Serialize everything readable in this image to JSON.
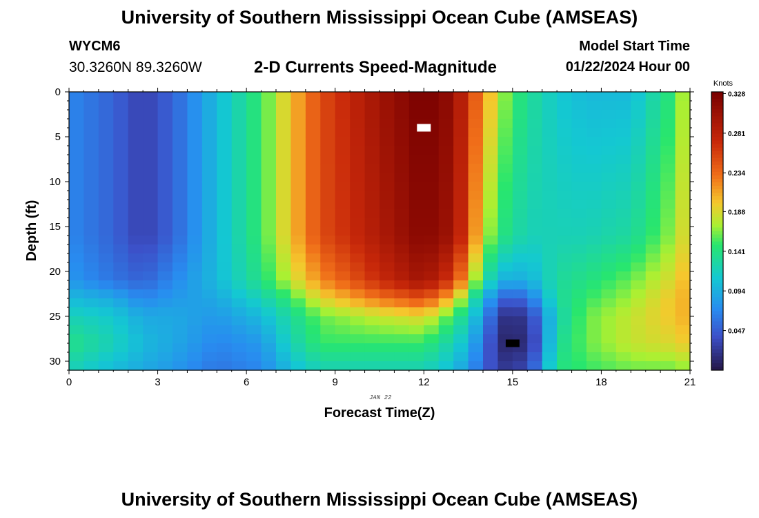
{
  "header": {
    "title": "University of Southern Mississippi Ocean Cube (AMSEAS)",
    "station_id": "WYCM6",
    "coords": "30.3260N  89.3260W",
    "plot_title": "2-D Currents Speed-Magnitude",
    "start_label": "Model Start Time",
    "start_value": "01/22/2024 Hour 00"
  },
  "footer": {
    "title": "University of Southern Mississippi Ocean Cube (AMSEAS)"
  },
  "chart_data": {
    "type": "heatmap",
    "title": "2-D Currents Speed-Magnitude",
    "xlabel": "Forecast Time(Z)",
    "ylabel": "Depth (ft)",
    "date_annotation": "JAN 22",
    "xlim": [
      0,
      21
    ],
    "ylim": [
      0,
      31
    ],
    "x_ticks": [
      0,
      3,
      6,
      9,
      12,
      15,
      18,
      21
    ],
    "y_ticks": [
      0,
      5,
      10,
      15,
      20,
      25,
      30
    ],
    "colorbar": {
      "label": "Knots",
      "ticks": [
        "0.047",
        "0.094",
        "0.141",
        "0.188",
        "0.234",
        "0.281",
        "0.328"
      ],
      "range": [
        0.0,
        0.33
      ]
    },
    "max_marker": {
      "hour": 12.0,
      "depth_ft": 4.0,
      "color": "#ffffff"
    },
    "min_marker": {
      "hour": 15.0,
      "depth_ft": 28.0,
      "color": "#000000"
    },
    "model_profiles": {
      "hours": [
        0,
        1.5,
        2.5,
        3.5,
        5,
        6.5,
        7.5,
        8.5,
        10.5,
        12,
        13,
        13.5,
        14,
        14.5,
        15,
        15.7,
        16.5,
        17.5,
        19,
        20.5,
        21
      ],
      "depths": [
        0,
        16,
        21,
        23,
        25,
        28,
        31
      ],
      "knots": [
        [
          0.07,
          0.07,
          0.08,
          0.1,
          0.12,
          0.14,
          0.12
        ],
        [
          0.05,
          0.05,
          0.06,
          0.09,
          0.11,
          0.12,
          0.1
        ],
        [
          0.03,
          0.03,
          0.05,
          0.07,
          0.09,
          0.1,
          0.09
        ],
        [
          0.05,
          0.05,
          0.07,
          0.08,
          0.09,
          0.09,
          0.08
        ],
        [
          0.1,
          0.1,
          0.1,
          0.09,
          0.08,
          0.07,
          0.06
        ],
        [
          0.15,
          0.15,
          0.14,
          0.12,
          0.1,
          0.08,
          0.07
        ],
        [
          0.2,
          0.2,
          0.18,
          0.15,
          0.13,
          0.12,
          0.1
        ],
        [
          0.25,
          0.25,
          0.22,
          0.19,
          0.16,
          0.15,
          0.12
        ],
        [
          0.3,
          0.29,
          0.27,
          0.23,
          0.18,
          0.15,
          0.12
        ],
        [
          0.33,
          0.32,
          0.3,
          0.25,
          0.19,
          0.15,
          0.12
        ],
        [
          0.31,
          0.3,
          0.26,
          0.2,
          0.15,
          0.12,
          0.1
        ],
        [
          0.26,
          0.25,
          0.2,
          0.15,
          0.12,
          0.1,
          0.08
        ],
        [
          0.22,
          0.18,
          0.14,
          0.1,
          0.08,
          0.06,
          0.05
        ],
        [
          0.18,
          0.15,
          0.1,
          0.06,
          0.03,
          0.02,
          0.03
        ],
        [
          0.15,
          0.13,
          0.09,
          0.04,
          0.01,
          0.005,
          0.02
        ],
        [
          0.13,
          0.12,
          0.1,
          0.07,
          0.04,
          0.03,
          0.05
        ],
        [
          0.11,
          0.12,
          0.13,
          0.13,
          0.12,
          0.13,
          0.14
        ],
        [
          0.1,
          0.12,
          0.14,
          0.15,
          0.16,
          0.16,
          0.15
        ],
        [
          0.1,
          0.13,
          0.16,
          0.17,
          0.18,
          0.18,
          0.16
        ],
        [
          0.15,
          0.17,
          0.19,
          0.2,
          0.2,
          0.19,
          0.16
        ],
        [
          0.19,
          0.2,
          0.21,
          0.21,
          0.21,
          0.2,
          0.17
        ]
      ]
    }
  }
}
